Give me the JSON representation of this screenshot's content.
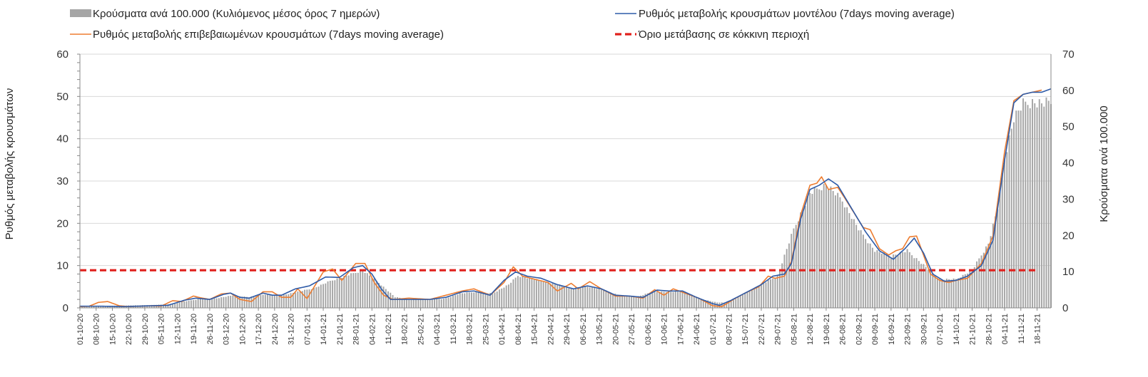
{
  "chart_data": {
    "type": "bar",
    "legend": {
      "placement": "top",
      "entries": [
        {
          "key": "bars",
          "label": "Κρούσματα ανά 100.000 (Κυλιόμενος μέσος όρος 7 ημερών)",
          "color": "#a6a6a6",
          "style": "bar"
        },
        {
          "key": "model",
          "label": "Ρυθμός μεταβολής κρουσμάτων μοντέλου (7days moving average)",
          "color": "#2e5ba8",
          "style": "line"
        },
        {
          "key": "confirmed",
          "label": "Ρυθμός μεταβολής επιβεβαιωμένων κρουσμάτων (7days moving average)",
          "color": "#ed7d31",
          "style": "line"
        },
        {
          "key": "threshold",
          "label": "Όριο μετάβασης σε κόκκινη περιοχή",
          "color": "#e0201c",
          "style": "dash"
        }
      ]
    },
    "ylabel_left": "Ρυθμός μεταβολής κρουσμάτων",
    "ylabel_right": "Κρούσματα ανά 100.000",
    "ylim_left": [
      0,
      60
    ],
    "yticks_left": [
      0,
      10,
      20,
      30,
      40,
      50,
      60
    ],
    "ylim_right": [
      0,
      70
    ],
    "yticks_right": [
      0,
      10,
      20,
      30,
      40,
      50,
      60,
      70
    ],
    "x_start": "2020-10-01",
    "x_end": "2021-11-24",
    "x_tick_labels": [
      "01-10-20",
      "08-10-20",
      "15-10-20",
      "22-10-20",
      "29-10-20",
      "05-11-20",
      "12-11-20",
      "19-11-20",
      "26-11-20",
      "03-12-20",
      "10-12-20",
      "17-12-20",
      "24-12-20",
      "31-12-20",
      "07-01-21",
      "14-01-21",
      "21-01-21",
      "28-01-21",
      "04-02-21",
      "11-02-21",
      "18-02-21",
      "25-02-21",
      "04-03-21",
      "11-03-21",
      "18-03-21",
      "25-03-21",
      "01-04-21",
      "08-04-21",
      "15-04-21",
      "22-04-21",
      "29-04-21",
      "06-05-21",
      "13-05-21",
      "20-05-21",
      "27-05-21",
      "03-06-21",
      "10-06-21",
      "17-06-21",
      "24-06-21",
      "01-07-21",
      "08-07-21",
      "15-07-21",
      "22-07-21",
      "29-07-21",
      "05-08-21",
      "12-08-21",
      "19-08-21",
      "26-08-21",
      "02-09-21",
      "09-09-21",
      "16-09-21",
      "23-09-21",
      "30-09-21",
      "07-10-21",
      "14-10-21",
      "21-10-21",
      "28-10-21",
      "04-11-21",
      "11-11-21",
      "18-11-21"
    ],
    "grid": "horizontal",
    "threshold": {
      "value": 8.9
    },
    "series": [
      {
        "key": "model",
        "axis": "left",
        "points": [
          [
            "2020-10-01",
            0.4
          ],
          [
            "2020-10-10",
            0.4
          ],
          [
            "2020-10-20",
            0.3
          ],
          [
            "2020-11-01",
            0.5
          ],
          [
            "2020-11-08",
            0.6
          ],
          [
            "2020-11-15",
            1.8
          ],
          [
            "2020-11-20",
            2.3
          ],
          [
            "2020-11-26",
            2.0
          ],
          [
            "2020-12-02",
            3.2
          ],
          [
            "2020-12-05",
            3.5
          ],
          [
            "2020-12-09",
            2.5
          ],
          [
            "2020-12-13",
            2.3
          ],
          [
            "2020-12-19",
            3.5
          ],
          [
            "2020-12-23",
            3.0
          ],
          [
            "2020-12-27",
            3.0
          ],
          [
            "2021-01-02",
            4.5
          ],
          [
            "2021-01-08",
            5.2
          ],
          [
            "2021-01-15",
            7.3
          ],
          [
            "2021-01-21",
            7.2
          ],
          [
            "2021-01-27",
            9.5
          ],
          [
            "2021-01-31",
            10.0
          ],
          [
            "2021-02-04",
            8.0
          ],
          [
            "2021-02-08",
            4.5
          ],
          [
            "2021-02-12",
            2.0
          ],
          [
            "2021-02-20",
            2.0
          ],
          [
            "2021-03-01",
            2.0
          ],
          [
            "2021-03-08",
            2.5
          ],
          [
            "2021-03-15",
            3.8
          ],
          [
            "2021-03-20",
            4.0
          ],
          [
            "2021-03-27",
            3.0
          ],
          [
            "2021-04-02",
            6.5
          ],
          [
            "2021-04-07",
            8.5
          ],
          [
            "2021-04-12",
            7.5
          ],
          [
            "2021-04-18",
            7.0
          ],
          [
            "2021-04-25",
            5.5
          ],
          [
            "2021-05-02",
            4.5
          ],
          [
            "2021-05-08",
            5.2
          ],
          [
            "2021-05-14",
            4.5
          ],
          [
            "2021-05-20",
            3.0
          ],
          [
            "2021-05-26",
            2.8
          ],
          [
            "2021-06-01",
            2.5
          ],
          [
            "2021-06-07",
            4.2
          ],
          [
            "2021-06-12",
            4.0
          ],
          [
            "2021-06-18",
            4.0
          ],
          [
            "2021-06-24",
            2.5
          ],
          [
            "2021-07-01",
            1.0
          ],
          [
            "2021-07-04",
            0.6
          ],
          [
            "2021-07-09",
            1.8
          ],
          [
            "2021-07-15",
            3.5
          ],
          [
            "2021-07-22",
            5.5
          ],
          [
            "2021-07-27",
            7.5
          ],
          [
            "2021-08-01",
            8.0
          ],
          [
            "2021-08-04",
            10.5
          ],
          [
            "2021-08-08",
            21.0
          ],
          [
            "2021-08-12",
            28.0
          ],
          [
            "2021-08-16",
            29.0
          ],
          [
            "2021-08-20",
            30.5
          ],
          [
            "2021-08-24",
            29.0
          ],
          [
            "2021-08-30",
            23.5
          ],
          [
            "2021-09-05",
            18.0
          ],
          [
            "2021-09-11",
            13.5
          ],
          [
            "2021-09-17",
            11.5
          ],
          [
            "2021-09-22",
            14.0
          ],
          [
            "2021-09-26",
            16.5
          ],
          [
            "2021-09-30",
            13.0
          ],
          [
            "2021-10-04",
            8.0
          ],
          [
            "2021-10-09",
            6.3
          ],
          [
            "2021-10-14",
            6.5
          ],
          [
            "2021-10-19",
            7.5
          ],
          [
            "2021-10-25",
            10.0
          ],
          [
            "2021-10-30",
            16.0
          ],
          [
            "2021-11-04",
            35.0
          ],
          [
            "2021-11-08",
            48.5
          ],
          [
            "2021-11-12",
            50.5
          ],
          [
            "2021-11-16",
            51.0
          ],
          [
            "2021-11-20",
            51.0
          ],
          [
            "2021-11-24",
            51.8
          ]
        ]
      },
      {
        "key": "confirmed",
        "axis": "left",
        "points": [
          [
            "2020-10-01",
            0.3
          ],
          [
            "2020-10-05",
            0.4
          ],
          [
            "2020-10-09",
            1.3
          ],
          [
            "2020-10-13",
            1.5
          ],
          [
            "2020-10-18",
            0.5
          ],
          [
            "2020-10-22",
            0.3
          ],
          [
            "2020-11-01",
            0.5
          ],
          [
            "2020-11-05",
            0.4
          ],
          [
            "2020-11-10",
            1.7
          ],
          [
            "2020-11-14",
            1.5
          ],
          [
            "2020-11-19",
            2.8
          ],
          [
            "2020-11-22",
            2.4
          ],
          [
            "2020-11-26",
            2.0
          ],
          [
            "2020-12-01",
            3.3
          ],
          [
            "2020-12-05",
            3.5
          ],
          [
            "2020-12-09",
            2.0
          ],
          [
            "2020-12-14",
            1.5
          ],
          [
            "2020-12-19",
            3.8
          ],
          [
            "2020-12-23",
            3.8
          ],
          [
            "2020-12-27",
            2.5
          ],
          [
            "2020-12-31",
            2.5
          ],
          [
            "2021-01-03",
            4.5
          ],
          [
            "2021-01-07",
            2.2
          ],
          [
            "2021-01-14",
            8.5
          ],
          [
            "2021-01-18",
            9.2
          ],
          [
            "2021-01-22",
            6.5
          ],
          [
            "2021-01-28",
            10.5
          ],
          [
            "2021-02-01",
            10.5
          ],
          [
            "2021-02-05",
            6.0
          ],
          [
            "2021-02-09",
            3.0
          ],
          [
            "2021-02-13",
            2.0
          ],
          [
            "2021-02-20",
            2.3
          ],
          [
            "2021-03-01",
            2.0
          ],
          [
            "2021-03-08",
            3.0
          ],
          [
            "2021-03-15",
            4.0
          ],
          [
            "2021-03-20",
            4.5
          ],
          [
            "2021-03-27",
            3.0
          ],
          [
            "2021-04-02",
            6.0
          ],
          [
            "2021-04-06",
            9.7
          ],
          [
            "2021-04-10",
            7.5
          ],
          [
            "2021-04-15",
            6.8
          ],
          [
            "2021-04-21",
            6.0
          ],
          [
            "2021-04-25",
            4.0
          ],
          [
            "2021-05-01",
            5.8
          ],
          [
            "2021-05-04",
            4.5
          ],
          [
            "2021-05-09",
            6.2
          ],
          [
            "2021-05-14",
            4.5
          ],
          [
            "2021-05-20",
            2.8
          ],
          [
            "2021-05-26",
            2.8
          ],
          [
            "2021-06-01",
            2.3
          ],
          [
            "2021-06-06",
            4.3
          ],
          [
            "2021-06-10",
            3.0
          ],
          [
            "2021-06-14",
            4.5
          ],
          [
            "2021-06-19",
            3.5
          ],
          [
            "2021-06-25",
            2.3
          ],
          [
            "2021-07-01",
            0.5
          ],
          [
            "2021-07-05",
            0.3
          ],
          [
            "2021-07-10",
            2.0
          ],
          [
            "2021-07-15",
            3.5
          ],
          [
            "2021-07-21",
            5.0
          ],
          [
            "2021-07-25",
            7.5
          ],
          [
            "2021-07-28",
            7.0
          ],
          [
            "2021-08-01",
            7.5
          ],
          [
            "2021-08-04",
            11.0
          ],
          [
            "2021-08-08",
            22.0
          ],
          [
            "2021-08-12",
            29.0
          ],
          [
            "2021-08-15",
            29.5
          ],
          [
            "2021-08-17",
            31.0
          ],
          [
            "2021-08-20",
            28.0
          ],
          [
            "2021-08-24",
            28.5
          ],
          [
            "2021-08-27",
            26.0
          ],
          [
            "2021-08-31",
            22.5
          ],
          [
            "2021-09-04",
            19.0
          ],
          [
            "2021-09-07",
            18.5
          ],
          [
            "2021-09-11",
            14.0
          ],
          [
            "2021-09-15",
            12.5
          ],
          [
            "2021-09-18",
            13.5
          ],
          [
            "2021-09-21",
            14.0
          ],
          [
            "2021-09-24",
            16.8
          ],
          [
            "2021-09-27",
            17.0
          ],
          [
            "2021-09-30",
            12.5
          ],
          [
            "2021-10-03",
            8.0
          ],
          [
            "2021-10-07",
            6.5
          ],
          [
            "2021-10-11",
            6.0
          ],
          [
            "2021-10-14",
            6.5
          ],
          [
            "2021-10-19",
            7.0
          ],
          [
            "2021-10-25",
            10.5
          ],
          [
            "2021-10-30",
            17.0
          ],
          [
            "2021-11-04",
            37.0
          ],
          [
            "2021-11-08",
            49.0
          ],
          [
            "2021-11-12",
            50.5
          ],
          [
            "2021-11-16",
            51.0
          ],
          [
            "2021-11-20",
            51.5
          ]
        ]
      },
      {
        "key": "bars",
        "axis": "right",
        "points": [
          [
            "2020-10-01",
            0.5
          ],
          [
            "2020-10-15",
            0.6
          ],
          [
            "2020-11-01",
            0.8
          ],
          [
            "2020-11-08",
            1.0
          ],
          [
            "2020-11-15",
            1.8
          ],
          [
            "2020-11-22",
            2.5
          ],
          [
            "2020-11-29",
            2.7
          ],
          [
            "2020-12-06",
            3.5
          ],
          [
            "2020-12-13",
            3.0
          ],
          [
            "2020-12-20",
            3.8
          ],
          [
            "2020-12-27",
            3.5
          ],
          [
            "2021-01-03",
            4.5
          ],
          [
            "2021-01-10",
            5.5
          ],
          [
            "2021-01-17",
            7.5
          ],
          [
            "2021-01-24",
            9.0
          ],
          [
            "2021-01-31",
            10.5
          ],
          [
            "2021-02-07",
            7.0
          ],
          [
            "2021-02-14",
            3.0
          ],
          [
            "2021-02-21",
            2.3
          ],
          [
            "2021-03-07",
            2.5
          ],
          [
            "2021-03-14",
            4.0
          ],
          [
            "2021-03-21",
            4.5
          ],
          [
            "2021-03-28",
            4.0
          ],
          [
            "2021-04-04",
            6.5
          ],
          [
            "2021-04-08",
            9.0
          ],
          [
            "2021-04-15",
            8.0
          ],
          [
            "2021-04-22",
            7.0
          ],
          [
            "2021-05-01",
            5.5
          ],
          [
            "2021-05-08",
            6.0
          ],
          [
            "2021-05-15",
            5.0
          ],
          [
            "2021-05-22",
            3.5
          ],
          [
            "2021-05-29",
            3.0
          ],
          [
            "2021-06-05",
            4.5
          ],
          [
            "2021-06-12",
            4.5
          ],
          [
            "2021-06-19",
            4.5
          ],
          [
            "2021-06-26",
            2.5
          ],
          [
            "2021-07-03",
            1.5
          ],
          [
            "2021-07-08",
            1.5
          ],
          [
            "2021-07-15",
            4.0
          ],
          [
            "2021-07-22",
            6.5
          ],
          [
            "2021-07-29",
            9.0
          ],
          [
            "2021-08-05",
            22.0
          ],
          [
            "2021-08-12",
            32.0
          ],
          [
            "2021-08-19",
            34.5
          ],
          [
            "2021-08-26",
            30.0
          ],
          [
            "2021-09-02",
            22.0
          ],
          [
            "2021-09-09",
            16.0
          ],
          [
            "2021-09-16",
            14.5
          ],
          [
            "2021-09-23",
            16.0
          ],
          [
            "2021-09-30",
            12.0
          ],
          [
            "2021-10-07",
            8.0
          ],
          [
            "2021-10-14",
            8.0
          ],
          [
            "2021-10-21",
            10.5
          ],
          [
            "2021-10-28",
            18.0
          ],
          [
            "2021-11-01",
            28.0
          ],
          [
            "2021-11-04",
            42.0
          ],
          [
            "2021-11-08",
            53.0
          ],
          [
            "2021-11-12",
            57.0
          ],
          [
            "2021-11-16",
            57.5
          ],
          [
            "2021-11-20",
            57.0
          ],
          [
            "2021-11-24",
            57.5
          ]
        ]
      }
    ]
  }
}
